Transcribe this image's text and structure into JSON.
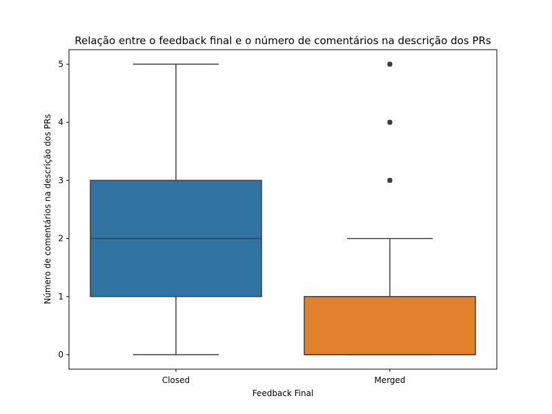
{
  "chart_data": {
    "type": "box",
    "title": "Relação entre o feedback final e o número de comentários na descrição dos PRs",
    "xlabel": "Feedback Final",
    "ylabel": "Número de comentários na descrição dos PRs",
    "ylim": [
      -0.25,
      5.25
    ],
    "yticks": [
      "0",
      "1",
      "2",
      "3",
      "4",
      "5"
    ],
    "grid": false,
    "categories": [
      "Closed",
      "Merged"
    ],
    "boxes": [
      {
        "name": "Closed",
        "color": "#3274a1",
        "whisker_low": 0,
        "q1": 1,
        "median": 2,
        "q3": 3,
        "whisker_high": 5,
        "outliers": []
      },
      {
        "name": "Merged",
        "color": "#e1812c",
        "whisker_low": 0,
        "q1": 0,
        "median": 0,
        "q3": 1,
        "whisker_high": 2,
        "outliers": [
          3,
          4,
          5
        ]
      }
    ]
  }
}
